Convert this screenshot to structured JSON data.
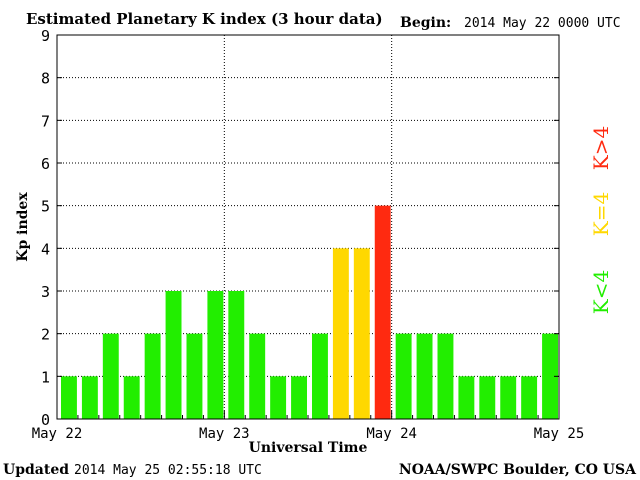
{
  "header": {
    "title": "Estimated Planetary K index (3 hour data)",
    "begin_label": "Begin:",
    "begin_value": "2014 May 22 0000 UTC"
  },
  "footer": {
    "updated_label": "Updated",
    "updated_value": "2014 May 25 02:55:18 UTC",
    "source": "NOAA/SWPC Boulder, CO USA"
  },
  "legend": {
    "low": "K<4",
    "equal": "K=4",
    "high": "K>4",
    "low_color": "#22ee00",
    "equal_color": "#ffd800",
    "high_color": "#ff2a10"
  },
  "chart_data": {
    "type": "bar",
    "title": "Estimated Planetary K index (3 hour data)",
    "xlabel": "Universal Time",
    "ylabel": "Kp index",
    "ylim": [
      0,
      9
    ],
    "yticks": [
      0,
      1,
      2,
      3,
      4,
      5,
      6,
      7,
      8,
      9
    ],
    "day_labels": [
      "May 22",
      "May 23",
      "May 24",
      "May 25"
    ],
    "grid": true,
    "interval_hours": 3,
    "values": [
      1,
      1,
      2,
      1,
      2,
      3,
      2,
      3,
      3,
      2,
      1,
      1,
      2,
      4,
      4,
      5,
      2,
      2,
      2,
      1,
      1,
      1,
      1,
      2
    ]
  }
}
